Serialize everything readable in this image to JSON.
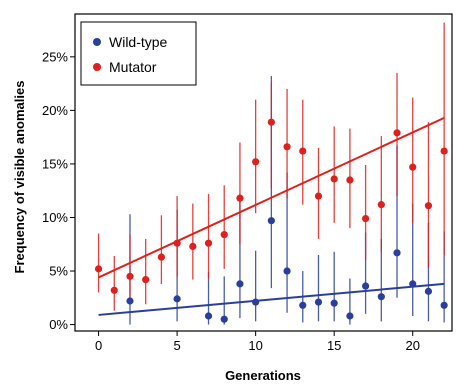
{
  "colors": {
    "wildtype": "#2a3f9d",
    "mutator": "#e0201c",
    "axis": "#000000"
  },
  "chart_data": {
    "type": "scatter",
    "xlabel": "Generations",
    "ylabel": "Frequency of visible anomalies",
    "xlim": [
      -1.5,
      22.5
    ],
    "ylim": [
      -0.6,
      29
    ],
    "xticks": [
      0,
      5,
      10,
      15,
      20
    ],
    "xtick_labels": [
      "0",
      "5",
      "10",
      "15",
      "20"
    ],
    "yticks": [
      0,
      5,
      10,
      15,
      20,
      25
    ],
    "ytick_labels": [
      "0%",
      "5%",
      "10%",
      "15%",
      "20%",
      "25%"
    ],
    "legend": {
      "position": "top-left",
      "entries": [
        "Wild-type",
        "Mutator"
      ]
    },
    "series": [
      {
        "name": "Wild-type",
        "color": "#2a3f9d",
        "points": [
          {
            "x": 2,
            "y": 2.2,
            "lo": 0.0,
            "hi": 10.3
          },
          {
            "x": 5,
            "y": 2.4,
            "lo": 0.3,
            "hi": 10.7
          },
          {
            "x": 7,
            "y": 0.8,
            "lo": 0.0,
            "hi": 4.9
          },
          {
            "x": 8,
            "y": 0.5,
            "lo": 0.0,
            "hi": 4.5
          },
          {
            "x": 9,
            "y": 3.8,
            "lo": 0.6,
            "hi": 12.2
          },
          {
            "x": 10,
            "y": 2.1,
            "lo": 0.3,
            "hi": 6.9
          },
          {
            "x": 11,
            "y": 9.7,
            "lo": 3.4,
            "hi": 23.2
          },
          {
            "x": 12,
            "y": 5.0,
            "lo": 1.1,
            "hi": 14.2
          },
          {
            "x": 13,
            "y": 1.8,
            "lo": 0.2,
            "hi": 5.0
          },
          {
            "x": 14,
            "y": 2.1,
            "lo": 0.3,
            "hi": 6.5
          },
          {
            "x": 15,
            "y": 2.0,
            "lo": 0.3,
            "hi": 6.8
          },
          {
            "x": 16,
            "y": 0.8,
            "lo": 0.0,
            "hi": 4.3
          },
          {
            "x": 17,
            "y": 3.6,
            "lo": 1.0,
            "hi": 8.6
          },
          {
            "x": 18,
            "y": 2.6,
            "lo": 0.3,
            "hi": 8.0
          },
          {
            "x": 19,
            "y": 6.7,
            "lo": 2.5,
            "hi": 16.7
          },
          {
            "x": 20,
            "y": 3.8,
            "lo": 0.8,
            "hi": 11.3
          },
          {
            "x": 21,
            "y": 3.1,
            "lo": 0.3,
            "hi": 9.5
          },
          {
            "x": 22,
            "y": 1.8,
            "lo": 0.2,
            "hi": 8.7
          }
        ],
        "trend": {
          "x": [
            0,
            22
          ],
          "y": [
            0.9,
            3.8
          ]
        }
      },
      {
        "name": "Mutator",
        "color": "#e0201c",
        "points": [
          {
            "x": 0,
            "y": 5.2,
            "lo": 3.0,
            "hi": 8.5
          },
          {
            "x": 1,
            "y": 3.2,
            "lo": 1.3,
            "hi": 6.4
          },
          {
            "x": 2,
            "y": 4.5,
            "lo": 2.0,
            "hi": 8.4
          },
          {
            "x": 3,
            "y": 4.2,
            "lo": 1.9,
            "hi": 8.0
          },
          {
            "x": 4,
            "y": 6.3,
            "lo": 3.8,
            "hi": 10.2
          },
          {
            "x": 5,
            "y": 7.6,
            "lo": 4.5,
            "hi": 12.0
          },
          {
            "x": 6,
            "y": 7.3,
            "lo": 4.2,
            "hi": 11.3
          },
          {
            "x": 7,
            "y": 7.6,
            "lo": 4.3,
            "hi": 12.2
          },
          {
            "x": 8,
            "y": 8.4,
            "lo": 5.2,
            "hi": 13.0
          },
          {
            "x": 9,
            "y": 11.8,
            "lo": 7.5,
            "hi": 17.0
          },
          {
            "x": 10,
            "y": 15.2,
            "lo": 10.4,
            "hi": 21.0
          },
          {
            "x": 11,
            "y": 18.9,
            "lo": 12.7,
            "hi": 22.6
          },
          {
            "x": 12,
            "y": 16.6,
            "lo": 11.8,
            "hi": 22.0
          },
          {
            "x": 13,
            "y": 16.2,
            "lo": 11.2,
            "hi": 21.0
          },
          {
            "x": 14,
            "y": 12.0,
            "lo": 8.0,
            "hi": 16.5
          },
          {
            "x": 15,
            "y": 13.6,
            "lo": 9.5,
            "hi": 18.5
          },
          {
            "x": 16,
            "y": 13.5,
            "lo": 9.0,
            "hi": 18.3
          },
          {
            "x": 17,
            "y": 9.9,
            "lo": 6.0,
            "hi": 14.9
          },
          {
            "x": 18,
            "y": 11.2,
            "lo": 6.8,
            "hi": 17.6
          },
          {
            "x": 19,
            "y": 17.9,
            "lo": 12.0,
            "hi": 23.5
          },
          {
            "x": 20,
            "y": 14.7,
            "lo": 9.5,
            "hi": 21.2
          },
          {
            "x": 21,
            "y": 11.1,
            "lo": 5.3,
            "hi": 18.9
          },
          {
            "x": 22,
            "y": 16.2,
            "lo": 6.5,
            "hi": 28.2
          }
        ],
        "trend": {
          "x": [
            0,
            22
          ],
          "y": [
            4.4,
            19.3
          ]
        }
      }
    ]
  }
}
